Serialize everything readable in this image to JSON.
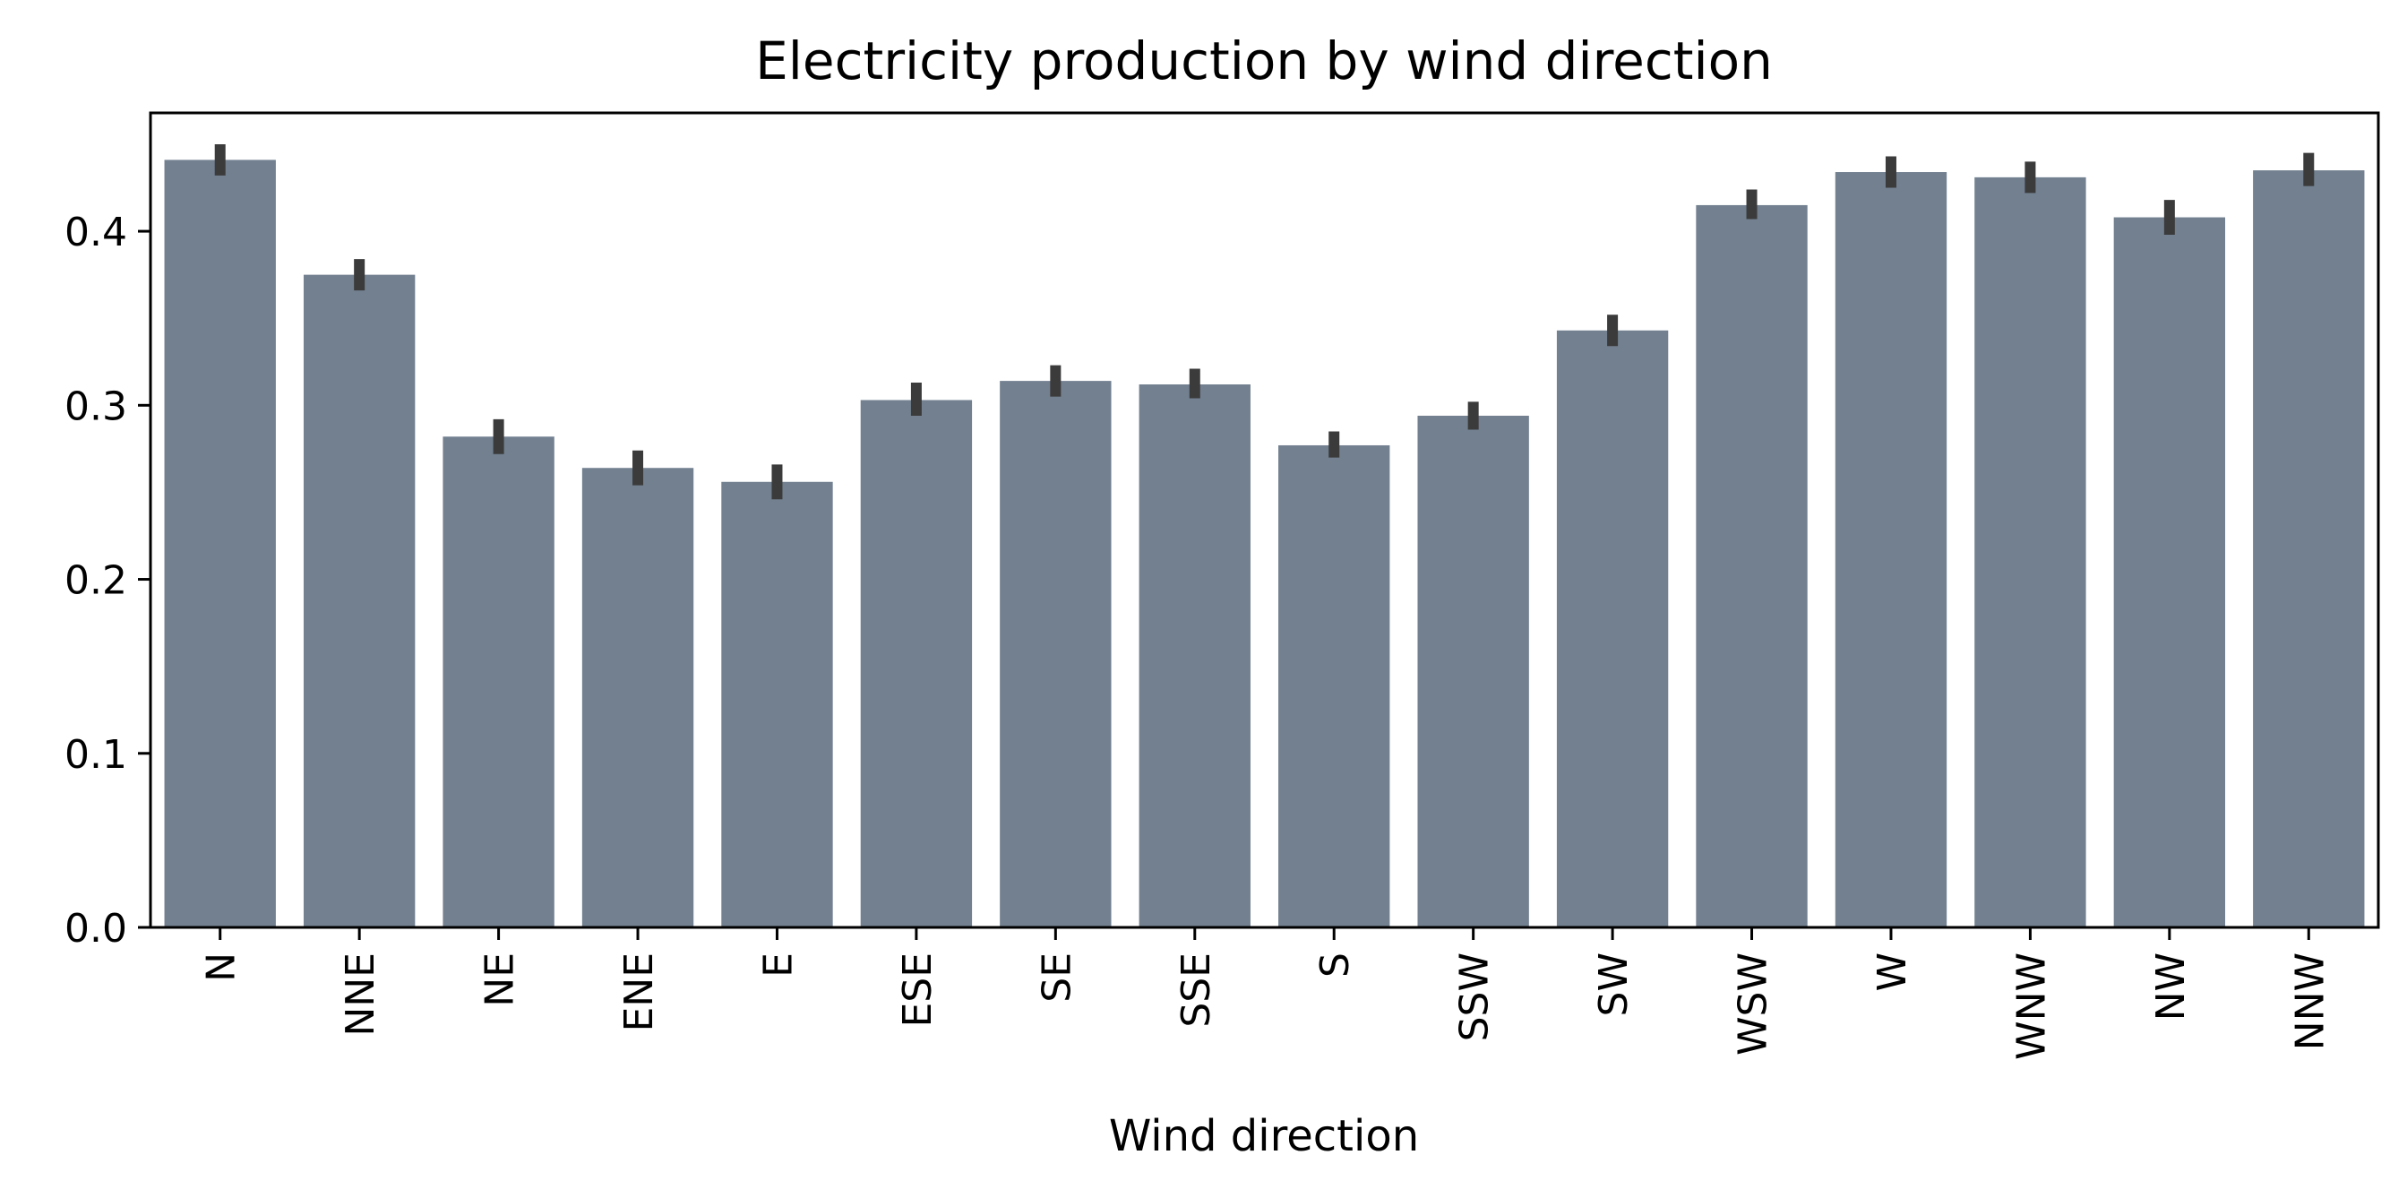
{
  "chart_data": {
    "type": "bar",
    "title": "Electricity production by wind direction",
    "xlabel": "Wind direction",
    "ylabel": "",
    "categories": [
      "N",
      "NNE",
      "NE",
      "ENE",
      "E",
      "ESE",
      "SE",
      "SSE",
      "S",
      "SSW",
      "SW",
      "WSW",
      "W",
      "WNW",
      "NW",
      "NNW"
    ],
    "values": [
      0.441,
      0.375,
      0.282,
      0.264,
      0.256,
      0.303,
      0.314,
      0.312,
      0.277,
      0.294,
      0.343,
      0.415,
      0.434,
      0.431,
      0.408,
      0.435
    ],
    "error_low": [
      0.432,
      0.366,
      0.272,
      0.254,
      0.246,
      0.294,
      0.305,
      0.304,
      0.27,
      0.286,
      0.334,
      0.407,
      0.425,
      0.422,
      0.398,
      0.426
    ],
    "error_high": [
      0.45,
      0.384,
      0.292,
      0.274,
      0.266,
      0.313,
      0.323,
      0.321,
      0.285,
      0.302,
      0.352,
      0.424,
      0.443,
      0.44,
      0.418,
      0.445
    ],
    "ylim": [
      0,
      0.468
    ],
    "yticks": [
      0.0,
      0.1,
      0.2,
      0.3,
      0.4
    ],
    "ytick_labels": [
      "0.0",
      "0.1",
      "0.2",
      "0.3",
      "0.4"
    ],
    "grid": false,
    "legend": "none",
    "colors": {
      "bar": "#728090",
      "error_bar": "#3b3b3b",
      "axis": "#000000"
    }
  }
}
